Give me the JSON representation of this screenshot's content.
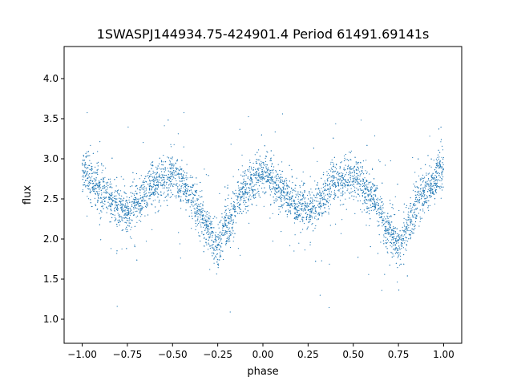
{
  "chart_data": {
    "type": "scatter",
    "title": "1SWASPJ144934.75-424901.4 Period 61491.69141s",
    "xlabel": "phase",
    "ylabel": "flux",
    "xlim": [
      -1.1,
      1.1
    ],
    "ylim": [
      0.7,
      4.4
    ],
    "xticks": [
      -1.0,
      -0.75,
      -0.5,
      -0.25,
      0.0,
      0.25,
      0.5,
      0.75,
      1.0
    ],
    "xtick_labels": [
      "−1.00",
      "−0.75",
      "−0.50",
      "−0.25",
      "0.00",
      "0.25",
      "0.50",
      "0.75",
      "1.00"
    ],
    "yticks": [
      1.0,
      1.5,
      2.0,
      2.5,
      3.0,
      3.5,
      4.0
    ],
    "ytick_labels": [
      "1.0",
      "1.5",
      "2.0",
      "2.5",
      "3.0",
      "3.5",
      "4.0"
    ],
    "grid": false,
    "marker_color": "#1f77b4",
    "phase_coverage": [
      -1.0,
      1.0
    ],
    "light_curve": {
      "phase": [
        0.0,
        0.1,
        0.2,
        0.25,
        0.3,
        0.4,
        0.5,
        0.6,
        0.7,
        0.75,
        0.8,
        0.9,
        1.0
      ],
      "flux": [
        2.85,
        2.6,
        2.4,
        2.35,
        2.45,
        2.7,
        2.8,
        2.55,
        2.1,
        1.9,
        2.2,
        2.6,
        2.85
      ]
    }
  }
}
